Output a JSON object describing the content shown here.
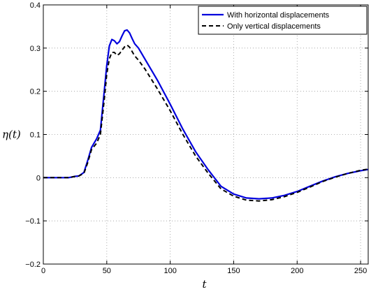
{
  "chart_data": {
    "type": "line",
    "xlabel": "t",
    "ylabel": "η(t)",
    "xlim": [
      0,
      256
    ],
    "ylim": [
      -0.2,
      0.4
    ],
    "xticks": [
      0,
      50,
      100,
      150,
      200,
      250
    ],
    "yticks": [
      -0.2,
      -0.1,
      0,
      0.1,
      0.2,
      0.3,
      0.4
    ],
    "xtick_labels": [
      "0",
      "50",
      "100",
      "150",
      "200",
      "250"
    ],
    "ytick_labels": [
      "−0.2",
      "−0.1",
      "0",
      "0.1",
      "0.2",
      "0.3",
      "0.4"
    ],
    "grid": true,
    "legend_position": "top-right",
    "series": [
      {
        "name": "With horizontal displacements",
        "color": "#0000dd",
        "style": "solid",
        "x": [
          0,
          10,
          20,
          25,
          28,
          32,
          35,
          38,
          42,
          45,
          48,
          50,
          52,
          54,
          56,
          58,
          60,
          62,
          64,
          66,
          68,
          70,
          72,
          75,
          80,
          90,
          100,
          110,
          120,
          130,
          140,
          150,
          160,
          170,
          180,
          190,
          200,
          210,
          220,
          230,
          240,
          250,
          256
        ],
        "y": [
          0,
          0,
          0,
          0.003,
          0.004,
          0.012,
          0.04,
          0.07,
          0.09,
          0.11,
          0.2,
          0.26,
          0.305,
          0.32,
          0.317,
          0.31,
          0.315,
          0.328,
          0.34,
          0.342,
          0.335,
          0.322,
          0.31,
          0.3,
          0.275,
          0.225,
          0.17,
          0.112,
          0.06,
          0.018,
          -0.02,
          -0.038,
          -0.047,
          -0.049,
          -0.047,
          -0.041,
          -0.032,
          -0.02,
          -0.008,
          0.002,
          0.01,
          0.016,
          0.019
        ]
      },
      {
        "name": "Only vertical displacements",
        "color": "#000000",
        "style": "dashed",
        "x": [
          0,
          10,
          20,
          25,
          28,
          32,
          35,
          38,
          42,
          45,
          48,
          50,
          52,
          54,
          56,
          58,
          60,
          62,
          64,
          66,
          68,
          70,
          72,
          75,
          80,
          90,
          100,
          110,
          120,
          130,
          140,
          150,
          160,
          170,
          180,
          190,
          200,
          210,
          220,
          230,
          240,
          250,
          256
        ],
        "y": [
          0,
          0,
          0,
          0.003,
          0.004,
          0.01,
          0.035,
          0.065,
          0.08,
          0.1,
          0.18,
          0.24,
          0.275,
          0.29,
          0.29,
          0.283,
          0.287,
          0.295,
          0.303,
          0.307,
          0.302,
          0.292,
          0.282,
          0.272,
          0.252,
          0.205,
          0.155,
          0.1,
          0.05,
          0.01,
          -0.026,
          -0.043,
          -0.052,
          -0.054,
          -0.051,
          -0.044,
          -0.034,
          -0.022,
          -0.009,
          0.001,
          0.01,
          0.017,
          0.02
        ]
      }
    ]
  }
}
